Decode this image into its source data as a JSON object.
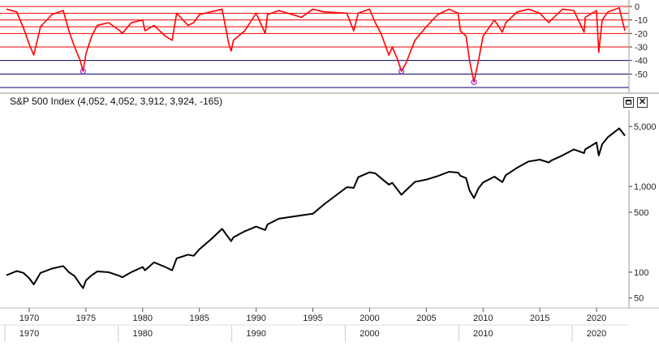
{
  "main_header": {
    "title": "S&P 500 Index",
    "ohlc": "(4,052, 4,052, 3,912, 3,924, -165)"
  },
  "colors": {
    "drawdown_line": "#ff0000",
    "drawdown_grid": "#ff0000",
    "deep_grid": "#000066",
    "trough_marker": "#8a2be2",
    "price_line": "#000000",
    "axis_text": "#222222"
  },
  "icons": {
    "maximize": "maximize-icon",
    "close": "close-icon"
  },
  "chart_data": [
    {
      "type": "line",
      "name": "drawdown",
      "x_range": [
        1968,
        2022.5
      ],
      "ylim": [
        -60,
        0
      ],
      "y_ticks": [
        {
          "value": 0,
          "label": "0"
        },
        {
          "value": -10,
          "label": "-10"
        },
        {
          "value": -20,
          "label": "-20"
        },
        {
          "value": -30,
          "label": "-30"
        },
        {
          "value": -40,
          "label": "-40"
        },
        {
          "value": -50,
          "label": "-50"
        }
      ],
      "grid_red": [
        0,
        -5,
        -10,
        -15,
        -20,
        -30
      ],
      "grid_dark": [
        -40,
        -50,
        -60
      ],
      "x": [
        1968.0,
        1968.9,
        1969.5,
        1970.0,
        1970.4,
        1971.0,
        1972.0,
        1973.0,
        1973.5,
        1974.0,
        1974.5,
        1974.75,
        1975.0,
        1975.5,
        1976.0,
        1977.0,
        1978.0,
        1978.2,
        1979.0,
        1980.0,
        1980.2,
        1981.0,
        1982.0,
        1982.6,
        1983.0,
        1984.0,
        1984.5,
        1985.0,
        1986.0,
        1987.0,
        1987.6,
        1987.8,
        1988.0,
        1989.0,
        1990.0,
        1990.8,
        1991.0,
        1992.0,
        1994.0,
        1995.0,
        1996.0,
        1998.0,
        1998.6,
        1999.0,
        2000.0,
        2000.5,
        2001.0,
        2001.7,
        2002.0,
        2002.5,
        2002.8,
        2003.2,
        2004.0,
        2005.0,
        2006.0,
        2007.0,
        2007.8,
        2008.0,
        2008.5,
        2008.8,
        2009.2,
        2009.6,
        2010.0,
        2011.0,
        2011.7,
        2012.0,
        2013.0,
        2014.0,
        2015.0,
        2015.8,
        2016.0,
        2017.0,
        2018.0,
        2018.9,
        2019.0,
        2020.0,
        2020.2,
        2020.5,
        2021.0,
        2022.0,
        2022.5
      ],
      "values": [
        -2,
        -4,
        -16,
        -28,
        -36,
        -15,
        -6,
        -3,
        -18,
        -30,
        -40,
        -48,
        -35,
        -22,
        -14,
        -12,
        -18,
        -20,
        -12,
        -10,
        -18,
        -14,
        -22,
        -25,
        -5,
        -14,
        -12,
        -6,
        -4,
        -2,
        -28,
        -33,
        -25,
        -18,
        -5,
        -20,
        -6,
        -3,
        -8,
        -2,
        -4,
        -5,
        -18,
        -5,
        -2,
        -12,
        -20,
        -36,
        -30,
        -40,
        -48,
        -42,
        -25,
        -15,
        -6,
        -2,
        -5,
        -18,
        -22,
        -40,
        -56,
        -40,
        -22,
        -10,
        -19,
        -12,
        -4,
        -2,
        -5,
        -12,
        -10,
        -2,
        -3,
        -19,
        -8,
        -3,
        -34,
        -10,
        -4,
        -1,
        -18
      ],
      "trough_markers": [
        {
          "x": 1974.75,
          "value": -48
        },
        {
          "x": 2002.8,
          "value": -48
        },
        {
          "x": 2009.2,
          "value": -56
        }
      ]
    },
    {
      "type": "line",
      "name": "price",
      "yscale": "log",
      "x_range": [
        1968,
        2022.5
      ],
      "ylim": [
        40,
        6500
      ],
      "y_ticks": [
        {
          "value": 5000,
          "label": "5,000"
        },
        {
          "value": 1000,
          "label": "1,000"
        },
        {
          "value": 500,
          "label": "500"
        },
        {
          "value": 100,
          "label": "100"
        },
        {
          "value": 50,
          "label": "50"
        }
      ],
      "x_ticks": [
        {
          "value": 1970,
          "label": "1970"
        },
        {
          "value": 1975,
          "label": "1975"
        },
        {
          "value": 1980,
          "label": "1980"
        },
        {
          "value": 1985,
          "label": "1985"
        },
        {
          "value": 1990,
          "label": "1990"
        },
        {
          "value": 1995,
          "label": "1995"
        },
        {
          "value": 2000,
          "label": "2000"
        },
        {
          "value": 2005,
          "label": "2005"
        },
        {
          "value": 2010,
          "label": "2010"
        },
        {
          "value": 2015,
          "label": "2015"
        },
        {
          "value": 2020,
          "label": "2020"
        }
      ],
      "decade_ticks": [
        {
          "value": 1970,
          "label": "1970"
        },
        {
          "value": 1980,
          "label": "1980"
        },
        {
          "value": 1990,
          "label": "1990"
        },
        {
          "value": 2000,
          "label": "2000"
        },
        {
          "value": 2010,
          "label": "2010"
        },
        {
          "value": 2020,
          "label": "2020"
        }
      ],
      "x": [
        1968.0,
        1968.9,
        1969.5,
        1970.0,
        1970.4,
        1971.0,
        1972.0,
        1973.0,
        1973.5,
        1974.0,
        1974.5,
        1974.75,
        1975.0,
        1975.5,
        1976.0,
        1977.0,
        1978.0,
        1978.2,
        1979.0,
        1980.0,
        1980.2,
        1981.0,
        1982.0,
        1982.6,
        1983.0,
        1984.0,
        1984.5,
        1985.0,
        1986.0,
        1987.0,
        1987.6,
        1987.8,
        1988.0,
        1989.0,
        1990.0,
        1990.8,
        1991.0,
        1992.0,
        1994.0,
        1995.0,
        1996.0,
        1998.0,
        1998.6,
        1999.0,
        2000.0,
        2000.5,
        2001.0,
        2001.7,
        2002.0,
        2002.5,
        2002.8,
        2003.2,
        2004.0,
        2005.0,
        2006.0,
        2007.0,
        2007.8,
        2008.0,
        2008.5,
        2008.8,
        2009.2,
        2009.6,
        2010.0,
        2011.0,
        2011.7,
        2012.0,
        2013.0,
        2014.0,
        2015.0,
        2015.8,
        2016.0,
        2017.0,
        2018.0,
        2018.9,
        2019.0,
        2020.0,
        2020.2,
        2020.5,
        2021.0,
        2022.0,
        2022.5
      ],
      "values": [
        92,
        103,
        98,
        85,
        72,
        98,
        110,
        118,
        100,
        90,
        72,
        65,
        80,
        92,
        102,
        100,
        90,
        87,
        100,
        115,
        105,
        130,
        115,
        105,
        145,
        160,
        155,
        185,
        240,
        320,
        250,
        230,
        255,
        300,
        340,
        310,
        360,
        420,
        460,
        480,
        620,
        980,
        960,
        1280,
        1460,
        1420,
        1250,
        1050,
        1100,
        900,
        800,
        900,
        1130,
        1200,
        1320,
        1480,
        1450,
        1330,
        1250,
        900,
        730,
        950,
        1110,
        1300,
        1120,
        1350,
        1650,
        1950,
        2050,
        1900,
        2000,
        2300,
        2700,
        2450,
        2700,
        3250,
        2300,
        3100,
        3750,
        4750,
        3900
      ]
    }
  ]
}
